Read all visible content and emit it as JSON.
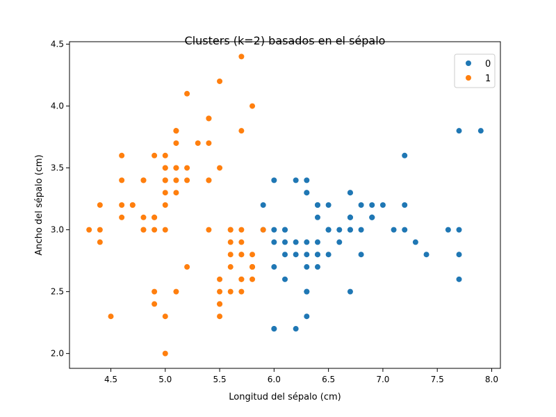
{
  "chart_data": {
    "type": "scatter",
    "title": "Clusters (k=2) basados en el sépalo",
    "xlabel": "Longitud del sépalo (cm)",
    "ylabel": "Ancho del sépalo (cm)",
    "xlim": [
      4.12,
      8.08
    ],
    "ylim": [
      1.88,
      4.52
    ],
    "x_ticks": [
      "4.5",
      "5.0",
      "5.5",
      "6.0",
      "6.5",
      "7.0",
      "7.5",
      "8.0"
    ],
    "y_ticks": [
      "2.0",
      "2.5",
      "3.0",
      "3.5",
      "4.0",
      "4.5"
    ],
    "grid": false,
    "legend_position": "top-right",
    "series": [
      {
        "name": "0",
        "color": "#1f77b4",
        "points": [
          [
            7.0,
            3.2
          ],
          [
            6.4,
            3.2
          ],
          [
            6.9,
            3.1
          ],
          [
            6.5,
            2.8
          ],
          [
            6.3,
            3.3
          ],
          [
            6.6,
            2.9
          ],
          [
            6.0,
            2.2
          ],
          [
            6.1,
            2.9
          ],
          [
            6.7,
            3.1
          ],
          [
            6.2,
            2.2
          ],
          [
            5.9,
            3.2
          ],
          [
            6.1,
            2.8
          ],
          [
            6.3,
            2.5
          ],
          [
            6.4,
            2.9
          ],
          [
            6.6,
            3.0
          ],
          [
            6.8,
            2.8
          ],
          [
            6.7,
            3.0
          ],
          [
            6.0,
            2.9
          ],
          [
            6.0,
            2.7
          ],
          [
            6.0,
            3.4
          ],
          [
            6.7,
            3.1
          ],
          [
            6.3,
            2.3
          ],
          [
            6.1,
            3.0
          ],
          [
            6.2,
            2.9
          ],
          [
            6.3,
            3.3
          ],
          [
            7.1,
            3.0
          ],
          [
            6.3,
            2.9
          ],
          [
            6.5,
            3.0
          ],
          [
            7.6,
            3.0
          ],
          [
            7.3,
            2.9
          ],
          [
            6.7,
            2.5
          ],
          [
            7.2,
            3.6
          ],
          [
            6.5,
            3.2
          ],
          [
            6.4,
            2.7
          ],
          [
            6.8,
            3.0
          ],
          [
            6.4,
            3.2
          ],
          [
            6.5,
            3.0
          ],
          [
            7.7,
            3.8
          ],
          [
            7.7,
            2.6
          ],
          [
            6.0,
            2.2
          ],
          [
            6.9,
            3.2
          ],
          [
            7.7,
            2.8
          ],
          [
            6.3,
            2.7
          ],
          [
            6.7,
            3.3
          ],
          [
            7.2,
            3.2
          ],
          [
            6.2,
            2.8
          ],
          [
            6.1,
            3.0
          ],
          [
            6.4,
            2.8
          ],
          [
            7.2,
            3.0
          ],
          [
            7.4,
            2.8
          ],
          [
            7.9,
            3.8
          ],
          [
            6.4,
            2.8
          ],
          [
            6.3,
            2.8
          ],
          [
            6.1,
            2.6
          ],
          [
            7.7,
            3.0
          ],
          [
            6.3,
            3.4
          ],
          [
            6.4,
            3.1
          ],
          [
            6.0,
            3.0
          ],
          [
            6.9,
            3.1
          ],
          [
            6.7,
            3.1
          ],
          [
            6.9,
            3.1
          ],
          [
            6.8,
            3.2
          ],
          [
            6.7,
            3.3
          ],
          [
            6.7,
            3.0
          ],
          [
            6.3,
            2.5
          ],
          [
            6.5,
            3.0
          ],
          [
            6.2,
            3.4
          ],
          [
            5.9,
            3.0
          ]
        ]
      },
      {
        "name": "1",
        "color": "#ff7f0e",
        "points": [
          [
            5.1,
            3.5
          ],
          [
            4.9,
            3.0
          ],
          [
            4.7,
            3.2
          ],
          [
            4.6,
            3.1
          ],
          [
            5.0,
            3.6
          ],
          [
            5.4,
            3.9
          ],
          [
            4.6,
            3.4
          ],
          [
            5.0,
            3.4
          ],
          [
            4.4,
            2.9
          ],
          [
            4.9,
            3.1
          ],
          [
            5.4,
            3.7
          ],
          [
            4.8,
            3.4
          ],
          [
            4.8,
            3.0
          ],
          [
            4.3,
            3.0
          ],
          [
            5.8,
            4.0
          ],
          [
            5.7,
            4.4
          ],
          [
            5.4,
            3.9
          ],
          [
            5.1,
            3.5
          ],
          [
            5.7,
            3.8
          ],
          [
            5.1,
            3.8
          ],
          [
            5.4,
            3.4
          ],
          [
            5.1,
            3.7
          ],
          [
            4.6,
            3.6
          ],
          [
            5.1,
            3.3
          ],
          [
            4.8,
            3.4
          ],
          [
            5.0,
            3.0
          ],
          [
            5.0,
            3.4
          ],
          [
            5.2,
            3.5
          ],
          [
            5.2,
            3.4
          ],
          [
            4.7,
            3.2
          ],
          [
            4.8,
            3.1
          ],
          [
            5.4,
            3.4
          ],
          [
            5.2,
            4.1
          ],
          [
            5.5,
            4.2
          ],
          [
            4.9,
            3.1
          ],
          [
            5.0,
            3.2
          ],
          [
            5.5,
            3.5
          ],
          [
            4.9,
            3.6
          ],
          [
            4.4,
            3.0
          ],
          [
            5.1,
            3.4
          ],
          [
            5.0,
            3.5
          ],
          [
            4.5,
            2.3
          ],
          [
            4.4,
            3.2
          ],
          [
            5.0,
            3.5
          ],
          [
            5.1,
            3.8
          ],
          [
            4.8,
            3.0
          ],
          [
            5.1,
            3.8
          ],
          [
            4.6,
            3.2
          ],
          [
            5.3,
            3.7
          ],
          [
            5.0,
            3.3
          ],
          [
            5.5,
            2.3
          ],
          [
            5.7,
            2.8
          ],
          [
            4.9,
            2.4
          ],
          [
            5.2,
            2.7
          ],
          [
            5.0,
            2.0
          ],
          [
            5.6,
            2.9
          ],
          [
            5.8,
            2.7
          ],
          [
            5.6,
            2.5
          ],
          [
            5.6,
            3.0
          ],
          [
            5.8,
            2.7
          ],
          [
            5.7,
            2.6
          ],
          [
            5.5,
            2.4
          ],
          [
            5.5,
            2.4
          ],
          [
            5.8,
            2.7
          ],
          [
            5.4,
            3.0
          ],
          [
            5.6,
            3.0
          ],
          [
            5.5,
            2.5
          ],
          [
            5.5,
            2.6
          ],
          [
            5.8,
            2.6
          ],
          [
            5.0,
            2.3
          ],
          [
            5.6,
            2.7
          ],
          [
            5.7,
            3.0
          ],
          [
            5.7,
            2.9
          ],
          [
            5.1,
            2.5
          ],
          [
            5.7,
            2.8
          ],
          [
            4.9,
            2.5
          ],
          [
            5.7,
            2.5
          ],
          [
            5.8,
            2.8
          ],
          [
            5.6,
            2.8
          ],
          [
            5.8,
            2.7
          ],
          [
            5.9,
            3.0
          ],
          [
            5.7,
            2.6
          ]
        ]
      }
    ]
  }
}
